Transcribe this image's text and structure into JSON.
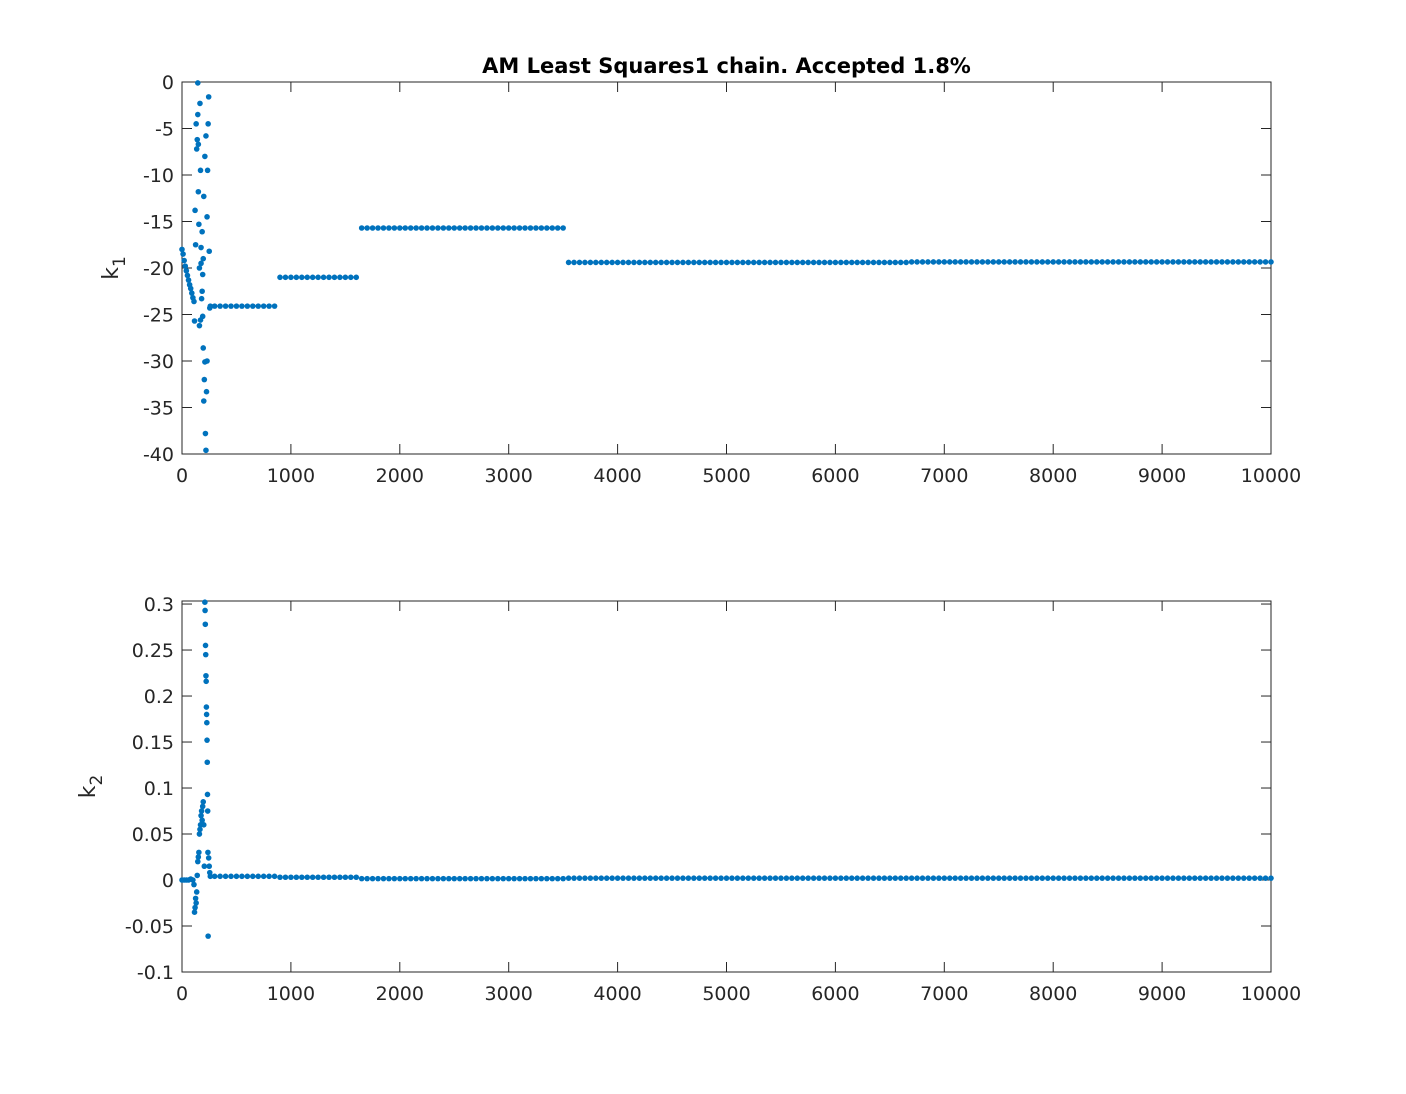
{
  "chart_data": [
    {
      "type": "scatter",
      "title": "AM Least Squares1 chain. Accepted 1.8%",
      "ylabel": [
        "k",
        "1"
      ],
      "color": "#0072bd",
      "xlim": [
        0,
        10000
      ],
      "xticks": [
        0,
        1000,
        2000,
        3000,
        4000,
        5000,
        6000,
        7000,
        8000,
        9000,
        10000
      ],
      "ylim": [
        -40,
        0
      ],
      "yticks": [
        -40,
        -35,
        -30,
        -25,
        -20,
        -15,
        -10,
        -5,
        0
      ],
      "x": [
        0,
        10,
        20,
        30,
        40,
        50,
        60,
        70,
        80,
        90,
        100,
        110,
        115,
        120,
        125,
        130,
        135,
        140,
        145,
        150,
        155,
        160,
        165,
        170,
        175,
        180,
        185,
        190,
        195,
        200,
        205,
        210,
        215,
        220,
        225,
        230,
        235,
        240,
        245,
        250,
        255,
        260,
        145,
        150,
        160,
        170,
        190,
        200,
        210,
        220,
        230,
        195,
        185,
        175,
        300,
        350,
        400,
        450,
        500,
        550,
        600,
        650,
        700,
        750,
        800,
        850,
        900,
        950,
        1000,
        1050,
        1100,
        1150,
        1200,
        1250,
        1300,
        1350,
        1400,
        1450,
        1500,
        1550,
        1600,
        1650,
        1700,
        1750,
        1800,
        1850,
        1900,
        1950,
        2000,
        2050,
        2100,
        2150,
        2200,
        2250,
        2300,
        2350,
        2400,
        2450,
        2500,
        2550,
        2600,
        2650,
        2700,
        2750,
        2800,
        2850,
        2900,
        2950,
        3000,
        3050,
        3100,
        3150,
        3200,
        3250,
        3300,
        3350,
        3400,
        3450,
        3500,
        3550,
        3600,
        3650,
        3700,
        3750,
        3800,
        3850,
        3900,
        3950,
        4000,
        4050,
        4100,
        4150,
        4200,
        4250,
        4300,
        4350,
        4400,
        4450,
        4500,
        4550,
        4600,
        4650,
        4700,
        4750,
        4800,
        4850,
        4900,
        4950,
        5000,
        5050,
        5100,
        5150,
        5200,
        5250,
        5300,
        5350,
        5400,
        5450,
        5500,
        5550,
        5600,
        5650,
        5700,
        5750,
        5800,
        5850,
        5900,
        5950,
        6000,
        6050,
        6100,
        6150,
        6200,
        6250,
        6300,
        6350,
        6400,
        6450,
        6500,
        6550,
        6600,
        6650,
        6700,
        6750,
        6800,
        6850,
        6900,
        6950,
        7000,
        7050,
        7100,
        7150,
        7200,
        7250,
        7300,
        7350,
        7400,
        7450,
        7500,
        7550,
        7600,
        7650,
        7700,
        7750,
        7800,
        7850,
        7900,
        7950,
        8000,
        8050,
        8100,
        8150,
        8200,
        8250,
        8300,
        8350,
        8400,
        8450,
        8500,
        8550,
        8600,
        8650,
        8700,
        8750,
        8800,
        8850,
        8900,
        8950,
        9000,
        9050,
        9100,
        9150,
        9200,
        9250,
        9300,
        9350,
        9400,
        9450,
        9500,
        9550,
        9600,
        9650,
        9700,
        9750,
        9800,
        9850,
        9900,
        9950,
        10000
      ],
      "values": [
        -18,
        -18.5,
        -19.2,
        -19.8,
        -20.3,
        -20.8,
        -21.3,
        -21.8,
        -22.2,
        -22.7,
        -23.2,
        -23.6,
        -25.7,
        -13.8,
        -17.5,
        -4.5,
        -7.2,
        -6.2,
        -0.1,
        -11.8,
        -15.3,
        -26.2,
        -2.3,
        -9.5,
        -19.5,
        -23.3,
        -16.1,
        -20.7,
        -28.6,
        -34.3,
        -32,
        -30.1,
        -37.8,
        -39.6,
        -33.3,
        -14.5,
        -9.5,
        -4.5,
        -1.6,
        -18.2,
        -24.3,
        -24.1,
        -3.5,
        -6.7,
        -20,
        -25.6,
        -25.2,
        -12.3,
        -8,
        -5.8,
        -30,
        -19,
        -22.5,
        -17.8,
        -24.1,
        -24.1,
        -24.1,
        -24.1,
        -24.1,
        -24.1,
        -24.1,
        -24.1,
        -24.1,
        -24.1,
        -24.1,
        -24.1,
        -21,
        -21,
        -21,
        -21,
        -21,
        -21,
        -21,
        -21,
        -21,
        -21,
        -21,
        -21,
        -21,
        -21,
        -21,
        -15.7,
        -15.7,
        -15.7,
        -15.7,
        -15.7,
        -15.7,
        -15.7,
        -15.7,
        -15.7,
        -15.7,
        -15.7,
        -15.7,
        -15.7,
        -15.7,
        -15.7,
        -15.7,
        -15.7,
        -15.7,
        -15.7,
        -15.7,
        -15.7,
        -15.7,
        -15.7,
        -15.7,
        -15.7,
        -15.7,
        -15.7,
        -15.7,
        -15.7,
        -15.7,
        -15.7,
        -15.7,
        -15.7,
        -15.7,
        -15.7,
        -15.7,
        -15.7,
        -15.7,
        -19.4,
        -19.4,
        -19.4,
        -19.4,
        -19.4,
        -19.4,
        -19.4,
        -19.4,
        -19.4,
        -19.4,
        -19.4,
        -19.4,
        -19.4,
        -19.4,
        -19.4,
        -19.4,
        -19.4,
        -19.4,
        -19.4,
        -19.4,
        -19.4,
        -19.4,
        -19.4,
        -19.4,
        -19.4,
        -19.4,
        -19.4,
        -19.4,
        -19.4,
        -19.4,
        -19.4,
        -19.4,
        -19.4,
        -19.4,
        -19.4,
        -19.4,
        -19.4,
        -19.4,
        -19.4,
        -19.4,
        -19.4,
        -19.4,
        -19.4,
        -19.4,
        -19.4,
        -19.4,
        -19.4,
        -19.4,
        -19.4,
        -19.4,
        -19.4,
        -19.4,
        -19.4,
        -19.4,
        -19.4,
        -19.4,
        -19.4,
        -19.4,
        -19.4,
        -19.4,
        -19.4,
        -19.4,
        -19.4,
        -19.35,
        -19.35,
        -19.35,
        -19.35,
        -19.35,
        -19.35,
        -19.35,
        -19.35,
        -19.35,
        -19.35,
        -19.35,
        -19.35,
        -19.35,
        -19.35,
        -19.35,
        -19.35,
        -19.35,
        -19.35,
        -19.35,
        -19.35,
        -19.35,
        -19.35,
        -19.35,
        -19.35,
        -19.35,
        -19.35,
        -19.35,
        -19.35,
        -19.35,
        -19.35,
        -19.35,
        -19.35,
        -19.35,
        -19.35,
        -19.35,
        -19.35,
        -19.35,
        -19.35,
        -19.35,
        -19.35,
        -19.35,
        -19.35,
        -19.35,
        -19.35,
        -19.35,
        -19.35,
        -19.35,
        -19.35,
        -19.35,
        -19.35,
        -19.35,
        -19.35,
        -19.35,
        -19.35,
        -19.35,
        -19.35,
        -19.35,
        -19.35,
        -19.35,
        -19.35,
        -19.35,
        -19.35,
        -19.35,
        -19.35,
        -19.35,
        -19.35,
        -19.35
      ]
    },
    {
      "type": "scatter",
      "ylabel": [
        "k",
        "2"
      ],
      "color": "#0072bd",
      "xlim": [
        0,
        10000
      ],
      "xticks": [
        0,
        1000,
        2000,
        3000,
        4000,
        5000,
        6000,
        7000,
        8000,
        9000,
        10000
      ],
      "ylim": [
        -0.1,
        0.3033
      ],
      "yticks": [
        -0.1,
        -0.05,
        0,
        0.05,
        0.1,
        0.15,
        0.2,
        0.25,
        0.3
      ],
      "x": [
        0,
        20,
        40,
        60,
        80,
        100,
        110,
        115,
        120,
        125,
        130,
        135,
        140,
        145,
        150,
        155,
        160,
        165,
        170,
        175,
        180,
        185,
        190,
        195,
        200,
        205,
        210,
        212,
        214,
        216,
        218,
        220,
        222,
        224,
        226,
        228,
        230,
        232,
        234,
        236,
        238,
        240,
        245,
        250,
        255,
        260,
        300,
        350,
        400,
        450,
        500,
        550,
        600,
        650,
        700,
        750,
        800,
        850,
        900,
        950,
        1000,
        1050,
        1100,
        1150,
        1200,
        1250,
        1300,
        1350,
        1400,
        1450,
        1500,
        1550,
        1600,
        1650,
        1700,
        1750,
        1800,
        1850,
        1900,
        1950,
        2000,
        2050,
        2100,
        2150,
        2200,
        2250,
        2300,
        2350,
        2400,
        2450,
        2500,
        2550,
        2600,
        2650,
        2700,
        2750,
        2800,
        2850,
        2900,
        2950,
        3000,
        3050,
        3100,
        3150,
        3200,
        3250,
        3300,
        3350,
        3400,
        3450,
        3500,
        3550,
        3600,
        3650,
        3700,
        3750,
        3800,
        3850,
        3900,
        3950,
        4000,
        4050,
        4100,
        4150,
        4200,
        4250,
        4300,
        4350,
        4400,
        4450,
        4500,
        4550,
        4600,
        4650,
        4700,
        4750,
        4800,
        4850,
        4900,
        4950,
        5000,
        5050,
        5100,
        5150,
        5200,
        5250,
        5300,
        5350,
        5400,
        5450,
        5500,
        5550,
        5600,
        5650,
        5700,
        5750,
        5800,
        5850,
        5900,
        5950,
        6000,
        6050,
        6100,
        6150,
        6200,
        6250,
        6300,
        6350,
        6400,
        6450,
        6500,
        6550,
        6600,
        6650,
        6700,
        6750,
        6800,
        6850,
        6900,
        6950,
        7000,
        7050,
        7100,
        7150,
        7200,
        7250,
        7300,
        7350,
        7400,
        7450,
        7500,
        7550,
        7600,
        7650,
        7700,
        7750,
        7800,
        7850,
        7900,
        7950,
        8000,
        8050,
        8100,
        8150,
        8200,
        8250,
        8300,
        8350,
        8400,
        8450,
        8500,
        8550,
        8600,
        8650,
        8700,
        8750,
        8800,
        8850,
        8900,
        8950,
        9000,
        9050,
        9100,
        9150,
        9200,
        9250,
        9300,
        9350,
        9400,
        9450,
        9500,
        9550,
        9600,
        9650,
        9700,
        9750,
        9800,
        9850,
        9900,
        9950,
        10000
      ],
      "values": [
        0,
        0,
        0,
        0,
        0.001,
        0,
        -0.005,
        -0.035,
        -0.03,
        -0.02,
        -0.025,
        -0.013,
        0.005,
        0.02,
        0.025,
        0.03,
        0.05,
        0.055,
        0.06,
        0.07,
        0.075,
        0.065,
        0.08,
        0.085,
        0.06,
        0.015,
        0.302,
        0.293,
        0.278,
        0.255,
        0.245,
        0.222,
        0.216,
        0.188,
        0.18,
        0.171,
        0.152,
        0.128,
        0.093,
        0.075,
        0.03,
        -0.061,
        0.024,
        0.015,
        0.008,
        0.004,
        0.004,
        0.004,
        0.004,
        0.004,
        0.004,
        0.004,
        0.004,
        0.004,
        0.004,
        0.004,
        0.004,
        0.004,
        0.003,
        0.003,
        0.003,
        0.003,
        0.003,
        0.003,
        0.003,
        0.003,
        0.003,
        0.003,
        0.003,
        0.003,
        0.003,
        0.003,
        0.003,
        0.0015,
        0.0015,
        0.0015,
        0.0015,
        0.0015,
        0.0015,
        0.0015,
        0.0015,
        0.0015,
        0.0015,
        0.0015,
        0.0015,
        0.0015,
        0.0015,
        0.0015,
        0.0015,
        0.0015,
        0.0015,
        0.0015,
        0.0015,
        0.0015,
        0.0015,
        0.0015,
        0.0015,
        0.0015,
        0.0015,
        0.0015,
        0.0015,
        0.0015,
        0.0015,
        0.0015,
        0.0015,
        0.0015,
        0.0015,
        0.0015,
        0.0015,
        0.0015,
        0.0015,
        0.002,
        0.002,
        0.002,
        0.002,
        0.002,
        0.002,
        0.002,
        0.002,
        0.002,
        0.002,
        0.002,
        0.002,
        0.002,
        0.002,
        0.002,
        0.002,
        0.002,
        0.002,
        0.002,
        0.002,
        0.002,
        0.002,
        0.002,
        0.002,
        0.002,
        0.002,
        0.002,
        0.002,
        0.002,
        0.002,
        0.002,
        0.002,
        0.002,
        0.002,
        0.002,
        0.002,
        0.002,
        0.002,
        0.002,
        0.002,
        0.002,
        0.002,
        0.002,
        0.002,
        0.002,
        0.002,
        0.002,
        0.002,
        0.002,
        0.002,
        0.002,
        0.002,
        0.002,
        0.002,
        0.002,
        0.002,
        0.002,
        0.002,
        0.002,
        0.002,
        0.002,
        0.002,
        0.002,
        0.002,
        0.002,
        0.002,
        0.002,
        0.002,
        0.002,
        0.002,
        0.002,
        0.002,
        0.002,
        0.002,
        0.002,
        0.002,
        0.002,
        0.002,
        0.002,
        0.002,
        0.002,
        0.002,
        0.002,
        0.002,
        0.002,
        0.002,
        0.002,
        0.002,
        0.002,
        0.002,
        0.002,
        0.002,
        0.002,
        0.002,
        0.002,
        0.002,
        0.002,
        0.002,
        0.002,
        0.002,
        0.002,
        0.002,
        0.002,
        0.002,
        0.002,
        0.002,
        0.002,
        0.002,
        0.002,
        0.002,
        0.002,
        0.002,
        0.002,
        0.002,
        0.002,
        0.002,
        0.002,
        0.002,
        0.002,
        0.002,
        0.002,
        0.002,
        0.002,
        0.002,
        0.002,
        0.002,
        0.002,
        0.002,
        0.002,
        0.002
      ]
    }
  ]
}
